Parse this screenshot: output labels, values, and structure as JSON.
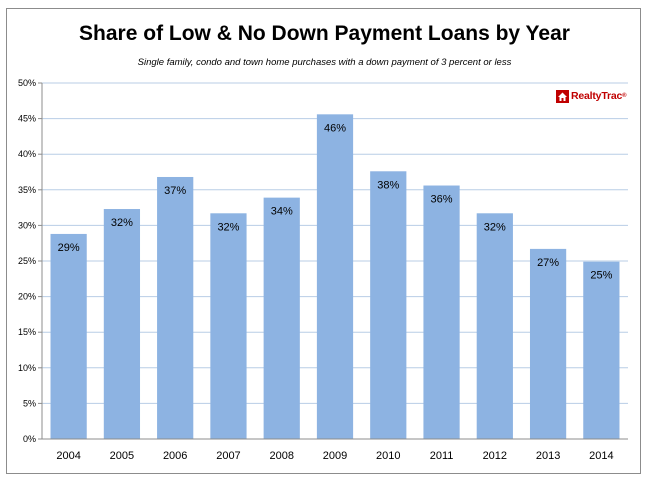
{
  "chart_data": {
    "type": "bar",
    "title": "Share of Low & No Down Payment Loans by Year",
    "subtitle": "Single family, condo and town home purchases with a down payment of 3 percent or less",
    "categories": [
      "2004",
      "2005",
      "2006",
      "2007",
      "2008",
      "2009",
      "2010",
      "2011",
      "2012",
      "2013",
      "2014"
    ],
    "values": [
      28.8,
      32.3,
      36.8,
      31.7,
      33.9,
      45.6,
      37.6,
      35.6,
      31.7,
      26.7,
      24.9
    ],
    "data_labels": [
      "29%",
      "32%",
      "37%",
      "32%",
      "34%",
      "46%",
      "38%",
      "36%",
      "32%",
      "27%",
      "25%"
    ],
    "ylim": [
      0,
      50
    ],
    "yticks": [
      "0%",
      "5%",
      "10%",
      "15%",
      "20%",
      "25%",
      "30%",
      "35%",
      "40%",
      "45%",
      "50%"
    ],
    "grid": true,
    "bar_color": "#8db3e2",
    "grid_color": "#b8cde6",
    "xlabel": "",
    "ylabel": ""
  },
  "logo": {
    "text": "RealtyTrac",
    "mark": "®",
    "color": "#c00000",
    "icon": "house-icon"
  }
}
